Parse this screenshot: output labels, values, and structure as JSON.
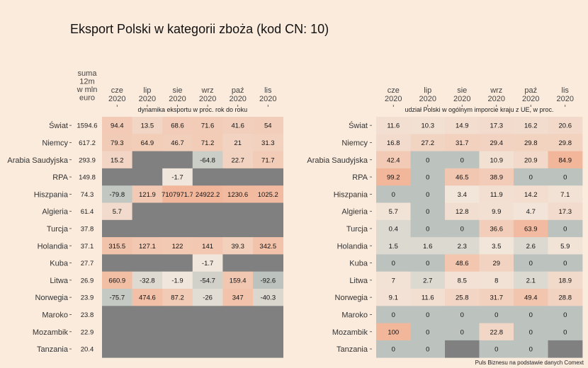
{
  "title": "Eksport Polski w kategorii zboża (kod CN: 10)",
  "source": "Puls Biznesu na podstawie danych Comext",
  "colors": {
    "background": "#fbebdd",
    "na": "#808080",
    "low": "#bcc3bf",
    "mid": "#f2e7dc",
    "high": "#f2b79b"
  },
  "chart_data": {
    "type": "heatmap",
    "countries": [
      "Świat",
      "Niemcy",
      "Arabia Saudyjska",
      "RPA",
      "Hiszpania",
      "Algieria",
      "Turcja",
      "Holandia",
      "Kuba",
      "Litwa",
      "Norwegia",
      "Maroko",
      "Mozambik",
      "Tanzania"
    ],
    "months": [
      "cze\n2020",
      "lip\n2020",
      "sie\n2020",
      "wrz\n2020",
      "paź\n2020",
      "lis\n2020"
    ],
    "sum_header": "suma\n12m\nw mln\neuro",
    "sum_values": [
      "1594.6",
      "617.2",
      "293.9",
      "149.8",
      "74.3",
      "61.4",
      "37.8",
      "37.1",
      "27.7",
      "26.9",
      "23.9",
      "23.8",
      "22.9",
      "20.4"
    ],
    "left_panel": {
      "subtitle": "dynamika eksportu w proc. rok do roku",
      "values": [
        [
          94.4,
          13.5,
          68.6,
          71.6,
          41.6,
          54
        ],
        [
          79.3,
          64.9,
          46.7,
          71.2,
          21,
          31.3
        ],
        [
          15.2,
          null,
          null,
          -64.8,
          22.7,
          71.7
        ],
        [
          null,
          null,
          -1.7,
          null,
          null,
          null
        ],
        [
          -79.8,
          121.9,
          7107971.7,
          24922.2,
          1230.6,
          1025.2
        ],
        [
          5.7,
          null,
          null,
          null,
          null,
          null
        ],
        [
          null,
          null,
          null,
          null,
          null,
          null
        ],
        [
          315.5,
          127.1,
          122,
          141,
          39.3,
          342.5
        ],
        [
          null,
          null,
          null,
          -1.7,
          null,
          null
        ],
        [
          660.9,
          -32.8,
          -1.9,
          -54.7,
          159.4,
          -92.6
        ],
        [
          -75.7,
          474.6,
          87.2,
          -26,
          347,
          -40.3
        ],
        [
          null,
          null,
          null,
          null,
          null,
          null
        ],
        [
          null,
          null,
          null,
          null,
          null,
          null
        ],
        [
          null,
          null,
          null,
          null,
          null,
          null
        ]
      ]
    },
    "right_panel": {
      "subtitle": "udział Polski w ogólnym imporcie kraju z UE, w proc.",
      "values": [
        [
          11.6,
          10.3,
          14.9,
          17.3,
          16.2,
          20.6
        ],
        [
          16.8,
          27.2,
          31.7,
          29.4,
          29.8,
          29.8
        ],
        [
          42.4,
          0,
          0,
          10.9,
          20.9,
          84.9
        ],
        [
          99.2,
          0,
          46.5,
          38.9,
          0,
          0
        ],
        [
          0,
          0,
          3.4,
          11.9,
          14.2,
          7.1
        ],
        [
          5.7,
          0,
          12.8,
          9.9,
          4.7,
          17.3
        ],
        [
          0.4,
          0,
          0,
          36.6,
          63.9,
          0
        ],
        [
          1.5,
          1.6,
          2.3,
          3.5,
          2.6,
          5.9
        ],
        [
          0,
          0,
          48.6,
          29,
          0,
          0
        ],
        [
          7,
          2.7,
          8.5,
          8,
          2.1,
          18.9
        ],
        [
          9.1,
          11.6,
          25.8,
          31.7,
          49.4,
          28.8
        ],
        [
          0,
          0,
          0,
          0,
          0,
          0
        ],
        [
          100,
          0,
          0,
          22.8,
          0,
          0
        ],
        [
          0,
          0,
          null,
          0,
          0,
          null
        ]
      ]
    }
  }
}
